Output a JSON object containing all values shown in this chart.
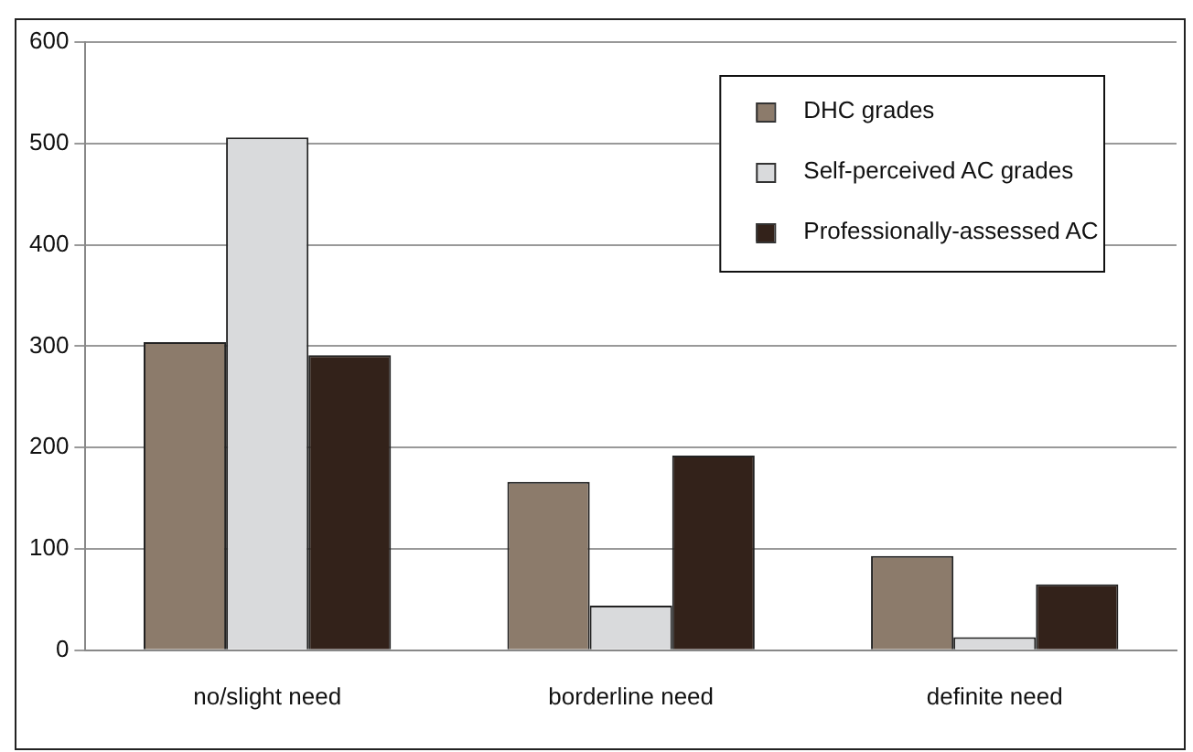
{
  "chart_data": {
    "type": "bar",
    "categories": [
      "no/slight need",
      "borderline need",
      "definite need"
    ],
    "series": [
      {
        "name": "DHC grades",
        "color": "#8c7b6b",
        "values": [
          304,
          166,
          93
        ]
      },
      {
        "name": "Self-perceived AC grades",
        "color": "#d9dadc",
        "values": [
          506,
          44,
          13
        ]
      },
      {
        "name": "Professionally-assessed AC",
        "color": "#33221a",
        "values": [
          291,
          192,
          65
        ]
      }
    ],
    "ylim": [
      0,
      600
    ],
    "yticks": [
      0,
      100,
      200,
      300,
      400,
      500,
      600
    ],
    "grid": "y",
    "legend": "top right"
  }
}
